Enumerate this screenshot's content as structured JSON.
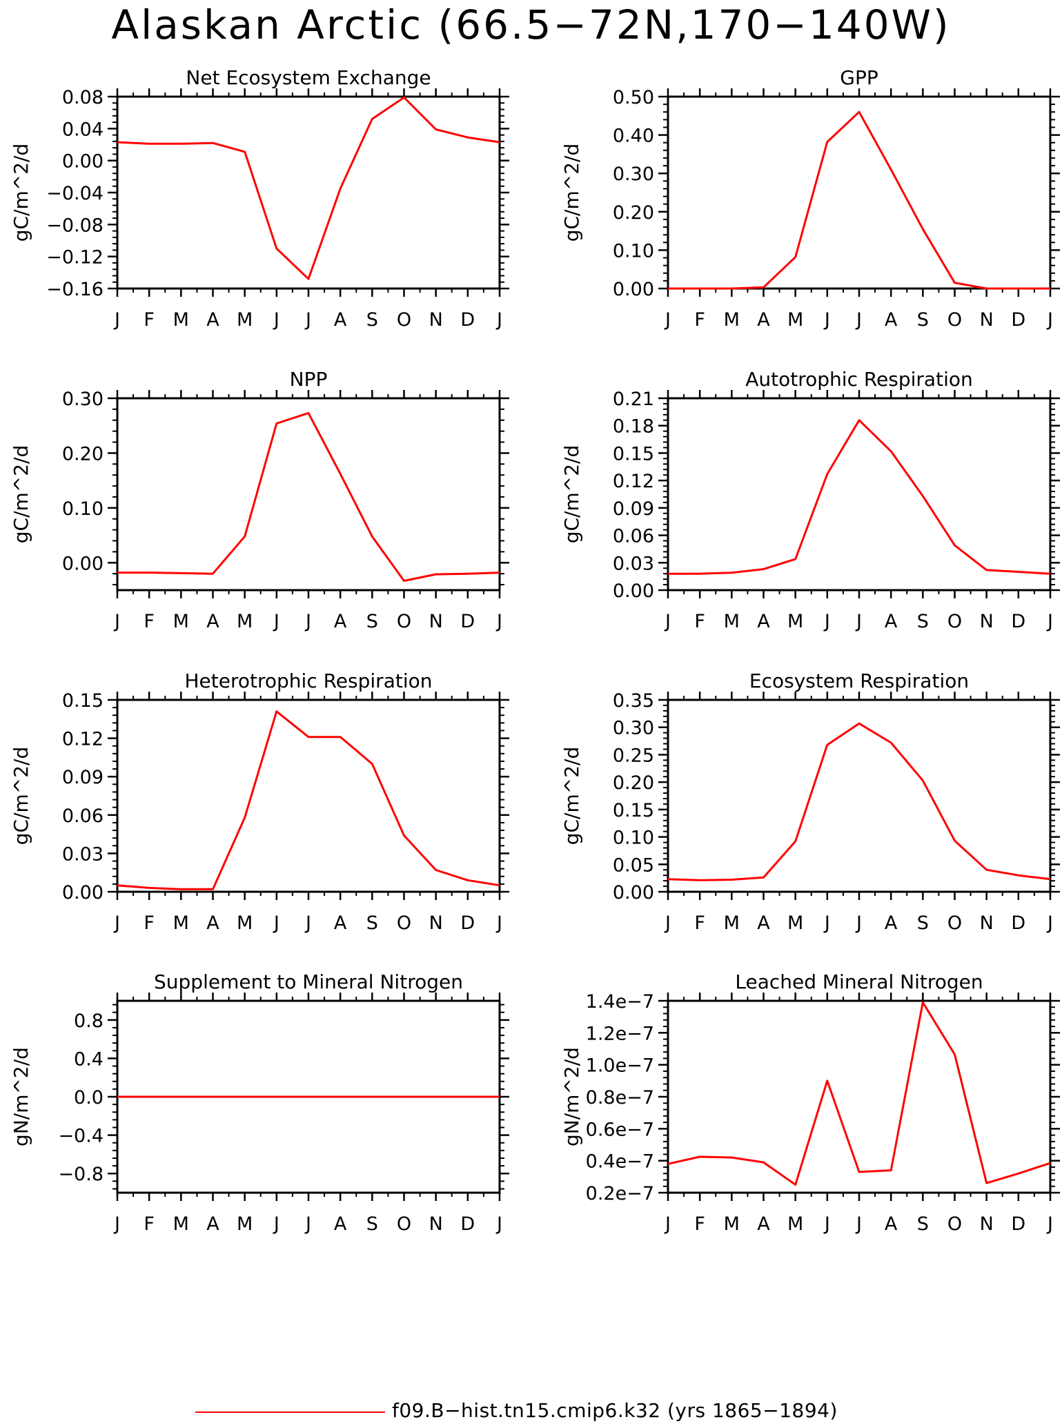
{
  "page": {
    "title": "Alaskan Arctic (66.5−72N,170−140W)",
    "legend": {
      "label": "f09.B−hist.tn15.cmip6.k32 (yrs 1865−1894)",
      "color": "#ff0000"
    }
  },
  "chart_data": [
    {
      "type": "line",
      "title": "Net Ecosystem Exchange",
      "ylabel": "gC/m^2/d",
      "categories": [
        "J",
        "F",
        "M",
        "A",
        "M",
        "J",
        "J",
        "A",
        "S",
        "O",
        "N",
        "D",
        "J"
      ],
      "ylim": [
        -0.16,
        0.08
      ],
      "yticks": [
        -0.16,
        -0.12,
        -0.08,
        -0.04,
        0.0,
        0.04,
        0.08
      ],
      "yticklabels": [
        "−0.16",
        "−0.12",
        "−0.08",
        "−0.04",
        "0.00",
        "0.04",
        "0.08"
      ],
      "series": [
        {
          "values": [
            0.023,
            0.021,
            0.021,
            0.022,
            0.011,
            -0.11,
            -0.148,
            -0.035,
            0.052,
            0.079,
            0.039,
            0.029,
            0.023
          ]
        }
      ]
    },
    {
      "type": "line",
      "title": "GPP",
      "ylabel": "gC/m^2/d",
      "categories": [
        "J",
        "F",
        "M",
        "A",
        "M",
        "J",
        "J",
        "A",
        "S",
        "O",
        "N",
        "D",
        "J"
      ],
      "ylim": [
        0.0,
        0.5
      ],
      "yticks": [
        0.0,
        0.1,
        0.2,
        0.3,
        0.4,
        0.5
      ],
      "yticklabels": [
        "0.00",
        "0.10",
        "0.20",
        "0.30",
        "0.40",
        "0.50"
      ],
      "series": [
        {
          "values": [
            0.0,
            0.0,
            0.0,
            0.003,
            0.082,
            0.382,
            0.46,
            0.31,
            0.155,
            0.015,
            0.0,
            0.0,
            0.0
          ]
        }
      ]
    },
    {
      "type": "line",
      "title": "NPP",
      "ylabel": "gC/m^2/d",
      "categories": [
        "J",
        "F",
        "M",
        "A",
        "M",
        "J",
        "J",
        "A",
        "S",
        "O",
        "N",
        "D",
        "J"
      ],
      "ylim": [
        -0.05,
        0.3
      ],
      "yticks": [
        0.0,
        0.1,
        0.2,
        0.3
      ],
      "yticklabels": [
        "0.00",
        "0.10",
        "0.20",
        "0.30"
      ],
      "series": [
        {
          "values": [
            -0.018,
            -0.018,
            -0.019,
            -0.02,
            0.048,
            0.254,
            0.273,
            0.162,
            0.048,
            -0.033,
            -0.021,
            -0.02,
            -0.018
          ]
        }
      ]
    },
    {
      "type": "line",
      "title": "Autotrophic Respiration",
      "ylabel": "gC/m^2/d",
      "categories": [
        "J",
        "F",
        "M",
        "A",
        "M",
        "J",
        "J",
        "A",
        "S",
        "O",
        "N",
        "D",
        "J"
      ],
      "ylim": [
        0.0,
        0.21
      ],
      "yticks": [
        0.0,
        0.03,
        0.06,
        0.09,
        0.12,
        0.15,
        0.18,
        0.21
      ],
      "yticklabels": [
        "0.00",
        "0.03",
        "0.06",
        "0.09",
        "0.12",
        "0.15",
        "0.18",
        "0.21"
      ],
      "series": [
        {
          "values": [
            0.018,
            0.018,
            0.019,
            0.023,
            0.034,
            0.127,
            0.186,
            0.152,
            0.103,
            0.049,
            0.022,
            0.02,
            0.018
          ]
        }
      ]
    },
    {
      "type": "line",
      "title": "Heterotrophic Respiration",
      "ylabel": "gC/m^2/d",
      "categories": [
        "J",
        "F",
        "M",
        "A",
        "M",
        "J",
        "J",
        "A",
        "S",
        "O",
        "N",
        "D",
        "J"
      ],
      "ylim": [
        0.0,
        0.15
      ],
      "yticks": [
        0.0,
        0.03,
        0.06,
        0.09,
        0.12,
        0.15
      ],
      "yticklabels": [
        "0.00",
        "0.03",
        "0.06",
        "0.09",
        "0.12",
        "0.15"
      ],
      "series": [
        {
          "values": [
            0.005,
            0.003,
            0.002,
            0.002,
            0.058,
            0.141,
            0.121,
            0.121,
            0.1,
            0.044,
            0.017,
            0.009,
            0.005
          ]
        }
      ]
    },
    {
      "type": "line",
      "title": "Ecosystem Respiration",
      "ylabel": "gC/m^2/d",
      "categories": [
        "J",
        "F",
        "M",
        "A",
        "M",
        "J",
        "J",
        "A",
        "S",
        "O",
        "N",
        "D",
        "J"
      ],
      "ylim": [
        0.0,
        0.35
      ],
      "yticks": [
        0.0,
        0.05,
        0.1,
        0.15,
        0.2,
        0.25,
        0.3,
        0.35
      ],
      "yticklabels": [
        "0.00",
        "0.05",
        "0.10",
        "0.15",
        "0.20",
        "0.25",
        "0.30",
        "0.35"
      ],
      "series": [
        {
          "values": [
            0.023,
            0.021,
            0.022,
            0.026,
            0.092,
            0.268,
            0.307,
            0.272,
            0.203,
            0.093,
            0.04,
            0.03,
            0.023
          ]
        }
      ]
    },
    {
      "type": "line",
      "title": "Supplement to Mineral Nitrogen",
      "ylabel": "gN/m^2/d",
      "categories": [
        "J",
        "F",
        "M",
        "A",
        "M",
        "J",
        "J",
        "A",
        "S",
        "O",
        "N",
        "D",
        "J"
      ],
      "ylim": [
        -1.0,
        1.0
      ],
      "yticks": [
        -0.8,
        -0.4,
        0.0,
        0.4,
        0.8
      ],
      "yticklabels": [
        "−0.8",
        "−0.4",
        "0.0",
        "0.4",
        "0.8"
      ],
      "series": [
        {
          "values": [
            0,
            0,
            0,
            0,
            0,
            0,
            0,
            0,
            0,
            0,
            0,
            0,
            0
          ]
        }
      ]
    },
    {
      "type": "line",
      "title": "Leached Mineral Nitrogen",
      "ylabel": "gN/m^2/d",
      "categories": [
        "J",
        "F",
        "M",
        "A",
        "M",
        "J",
        "J",
        "A",
        "S",
        "O",
        "N",
        "D",
        "J"
      ],
      "ylim": [
        2e-08,
        1.4e-07
      ],
      "yticks": [
        2e-08,
        4e-08,
        6e-08,
        8e-08,
        1e-07,
        1.2e-07,
        1.4e-07
      ],
      "yticklabels": [
        "0.2e−7",
        "0.4e−7",
        "0.6e−7",
        "0.8e−7",
        "1.0e−7",
        "1.2e−7",
        "1.4e−7"
      ],
      "series": [
        {
          "values": [
            3.8e-08,
            4.25e-08,
            4.2e-08,
            3.9e-08,
            2.5e-08,
            9e-08,
            3.3e-08,
            3.4e-08,
            1.39e-07,
            1.065e-07,
            2.6e-08,
            3.2e-08,
            3.85e-08
          ]
        }
      ]
    }
  ]
}
